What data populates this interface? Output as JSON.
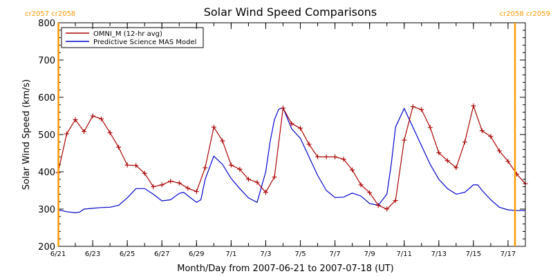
{
  "colors": {
    "omni": "#aa0000",
    "model": "#0000cc",
    "rotation_marker": "#ff9900",
    "axis": "#000000"
  },
  "chart_data": {
    "type": "line",
    "title": "Solar Wind Speed Comparisons",
    "xlabel": "Month/Day from 2007-06-21 to 2007-07-18 (UT)",
    "ylabel": "Solar Wind Speed (km/s)",
    "xlim": [
      "2007-06-21",
      "2007-07-18"
    ],
    "ylim": [
      200,
      800
    ],
    "yticks": [
      200,
      300,
      400,
      500,
      600,
      700,
      800
    ],
    "xticks": [
      {
        "date": "2007-06-21",
        "label": "6/21"
      },
      {
        "date": "2007-06-23",
        "label": "6/23"
      },
      {
        "date": "2007-06-25",
        "label": "6/25"
      },
      {
        "date": "2007-06-27",
        "label": "6/27"
      },
      {
        "date": "2007-06-29",
        "label": "6/29"
      },
      {
        "date": "2007-07-01",
        "label": "7/1"
      },
      {
        "date": "2007-07-03",
        "label": "7/3"
      },
      {
        "date": "2007-07-05",
        "label": "7/5"
      },
      {
        "date": "2007-07-07",
        "label": "7/7"
      },
      {
        "date": "2007-07-09",
        "label": "7/9"
      },
      {
        "date": "2007-07-11",
        "label": "7/11"
      },
      {
        "date": "2007-07-13",
        "label": "7/13"
      },
      {
        "date": "2007-07-15",
        "label": "7/15"
      },
      {
        "date": "2007-07-17",
        "label": "7/17"
      }
    ],
    "legend_placement": "top-left",
    "rotation_markers": [
      {
        "date": "2007-06-21",
        "labels": [
          "cr2057",
          "cr2058"
        ],
        "side": "left"
      },
      {
        "date": "2007-07-18",
        "labels": [
          "cr2058",
          "cr2059"
        ],
        "side": "right"
      }
    ],
    "series": [
      {
        "name": "OMNI_M (12-hr avg)",
        "color": "#aa0000",
        "markers": true,
        "points": [
          [
            "2007-06-21 00:00",
            398
          ],
          [
            "2007-06-21 12:00",
            502
          ],
          [
            "2007-06-22 00:00",
            540
          ],
          [
            "2007-06-22 12:00",
            508
          ],
          [
            "2007-06-23 00:00",
            550
          ],
          [
            "2007-06-23 12:00",
            542
          ],
          [
            "2007-06-24 00:00",
            505
          ],
          [
            "2007-06-24 12:00",
            466
          ],
          [
            "2007-06-25 00:00",
            418
          ],
          [
            "2007-06-25 12:00",
            417
          ],
          [
            "2007-06-26 00:00",
            396
          ],
          [
            "2007-06-26 12:00",
            360
          ],
          [
            "2007-06-27 00:00",
            365
          ],
          [
            "2007-06-27 12:00",
            375
          ],
          [
            "2007-06-28 00:00",
            370
          ],
          [
            "2007-06-28 12:00",
            356
          ],
          [
            "2007-06-29 00:00",
            347
          ],
          [
            "2007-06-29 12:00",
            411
          ],
          [
            "2007-06-30 00:00",
            520
          ],
          [
            "2007-06-30 12:00",
            483
          ],
          [
            "2007-07-01 00:00",
            418
          ],
          [
            "2007-07-01 12:00",
            407
          ],
          [
            "2007-07-02 00:00",
            380
          ],
          [
            "2007-07-02 12:00",
            372
          ],
          [
            "2007-07-03 00:00",
            345
          ],
          [
            "2007-07-03 12:00",
            386
          ],
          [
            "2007-07-04 00:00",
            571
          ],
          [
            "2007-07-04 12:00",
            529
          ],
          [
            "2007-07-05 00:00",
            517
          ],
          [
            "2007-07-05 12:00",
            474
          ],
          [
            "2007-07-06 00:00",
            440
          ],
          [
            "2007-07-06 12:00",
            440
          ],
          [
            "2007-07-07 00:00",
            440
          ],
          [
            "2007-07-07 12:00",
            434
          ],
          [
            "2007-07-08 00:00",
            405
          ],
          [
            "2007-07-08 12:00",
            365
          ],
          [
            "2007-07-09 00:00",
            344
          ],
          [
            "2007-07-09 12:00",
            310
          ],
          [
            "2007-07-10 00:00",
            300
          ],
          [
            "2007-07-10 12:00",
            323
          ],
          [
            "2007-07-11 00:00",
            485
          ],
          [
            "2007-07-11 12:00",
            575
          ],
          [
            "2007-07-12 00:00",
            567
          ],
          [
            "2007-07-12 12:00",
            519
          ],
          [
            "2007-07-13 00:00",
            451
          ],
          [
            "2007-07-13 12:00",
            430
          ],
          [
            "2007-07-14 00:00",
            411
          ],
          [
            "2007-07-14 12:00",
            480
          ],
          [
            "2007-07-15 00:00",
            577
          ],
          [
            "2007-07-15 12:00",
            510
          ],
          [
            "2007-07-16 00:00",
            495
          ],
          [
            "2007-07-16 12:00",
            456
          ],
          [
            "2007-07-17 00:00",
            428
          ],
          [
            "2007-07-17 12:00",
            394
          ],
          [
            "2007-07-18 00:00",
            368
          ]
        ]
      },
      {
        "name": "Predictive Science MAS Model",
        "color": "#0000cc",
        "markers": false,
        "points": [
          [
            "2007-06-21 00:00",
            298
          ],
          [
            "2007-06-21 12:00",
            293
          ],
          [
            "2007-06-22 00:00",
            290
          ],
          [
            "2007-06-22 06:00",
            292
          ],
          [
            "2007-06-22 12:00",
            300
          ],
          [
            "2007-06-23 00:00",
            302
          ],
          [
            "2007-06-23 12:00",
            304
          ],
          [
            "2007-06-24 00:00",
            305
          ],
          [
            "2007-06-24 12:00",
            310
          ],
          [
            "2007-06-25 00:00",
            330
          ],
          [
            "2007-06-25 12:00",
            355
          ],
          [
            "2007-06-26 00:00",
            355
          ],
          [
            "2007-06-26 12:00",
            340
          ],
          [
            "2007-06-27 00:00",
            322
          ],
          [
            "2007-06-27 12:00",
            325
          ],
          [
            "2007-06-28 00:00",
            342
          ],
          [
            "2007-06-28 06:00",
            345
          ],
          [
            "2007-06-28 12:00",
            336
          ],
          [
            "2007-06-29 00:00",
            318
          ],
          [
            "2007-06-29 06:00",
            325
          ],
          [
            "2007-06-29 12:00",
            380
          ],
          [
            "2007-06-30 00:00",
            442
          ],
          [
            "2007-06-30 12:00",
            420
          ],
          [
            "2007-07-01 00:00",
            382
          ],
          [
            "2007-07-01 12:00",
            355
          ],
          [
            "2007-07-02 00:00",
            330
          ],
          [
            "2007-07-02 12:00",
            318
          ],
          [
            "2007-07-03 00:00",
            400
          ],
          [
            "2007-07-03 06:00",
            480
          ],
          [
            "2007-07-03 12:00",
            540
          ],
          [
            "2007-07-03 18:00",
            568
          ],
          [
            "2007-07-04 00:00",
            572
          ],
          [
            "2007-07-04 12:00",
            515
          ],
          [
            "2007-07-05 00:00",
            490
          ],
          [
            "2007-07-05 12:00",
            440
          ],
          [
            "2007-07-06 00:00",
            390
          ],
          [
            "2007-07-06 12:00",
            350
          ],
          [
            "2007-07-07 00:00",
            331
          ],
          [
            "2007-07-07 12:00",
            332
          ],
          [
            "2007-07-08 00:00",
            343
          ],
          [
            "2007-07-08 12:00",
            335
          ],
          [
            "2007-07-09 00:00",
            315
          ],
          [
            "2007-07-09 12:00",
            310
          ],
          [
            "2007-07-10 00:00",
            340
          ],
          [
            "2007-07-10 06:00",
            420
          ],
          [
            "2007-07-10 12:00",
            520
          ],
          [
            "2007-07-11 00:00",
            570
          ],
          [
            "2007-07-11 12:00",
            520
          ],
          [
            "2007-07-12 00:00",
            470
          ],
          [
            "2007-07-12 12:00",
            420
          ],
          [
            "2007-07-13 00:00",
            380
          ],
          [
            "2007-07-13 12:00",
            355
          ],
          [
            "2007-07-14 00:00",
            340
          ],
          [
            "2007-07-14 12:00",
            345
          ],
          [
            "2007-07-15 00:00",
            365
          ],
          [
            "2007-07-15 06:00",
            365
          ],
          [
            "2007-07-15 12:00",
            350
          ],
          [
            "2007-07-16 00:00",
            325
          ],
          [
            "2007-07-16 12:00",
            305
          ],
          [
            "2007-07-17 00:00",
            298
          ],
          [
            "2007-07-17 12:00",
            296
          ],
          [
            "2007-07-18 00:00",
            296
          ]
        ]
      }
    ]
  }
}
